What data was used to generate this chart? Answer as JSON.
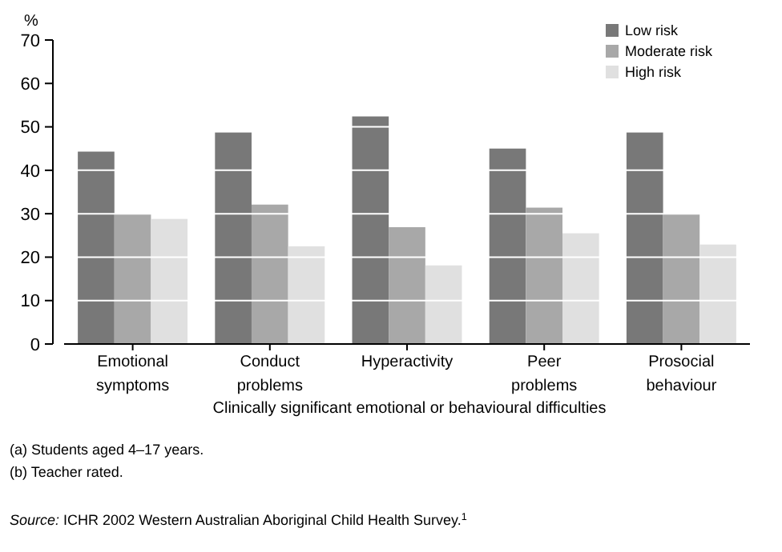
{
  "chart_data": {
    "type": "bar",
    "ylabel": "%",
    "xlabel": "Clinically significant emotional or behavioural difficulties",
    "categories": [
      "Emotional symptoms",
      "Conduct problems",
      "Hyperactivity",
      "Peer problems",
      "Prosocial behaviour"
    ],
    "series": [
      {
        "name": "Low risk",
        "color": "#787878",
        "values": [
          44.3,
          48.7,
          52.4,
          45.0,
          48.7
        ]
      },
      {
        "name": "Moderate risk",
        "color": "#a8a8a8",
        "values": [
          29.9,
          32.1,
          26.9,
          31.4,
          29.9
        ]
      },
      {
        "name": "High risk",
        "color": "#e0e0e0",
        "values": [
          28.8,
          22.5,
          18.1,
          25.5,
          22.9
        ]
      }
    ],
    "ylim": [
      0,
      70
    ],
    "yticks": [
      0,
      10,
      20,
      30,
      40,
      50,
      60,
      70
    ],
    "grid": "y",
    "legend": "top right",
    "annotations": [
      "(a) Students aged 4–17 years.",
      "(b) Teacher rated.",
      "Source: ICHR 2002 Western Australian Aboriginal Child Health Survey.$^{1}$"
    ]
  }
}
